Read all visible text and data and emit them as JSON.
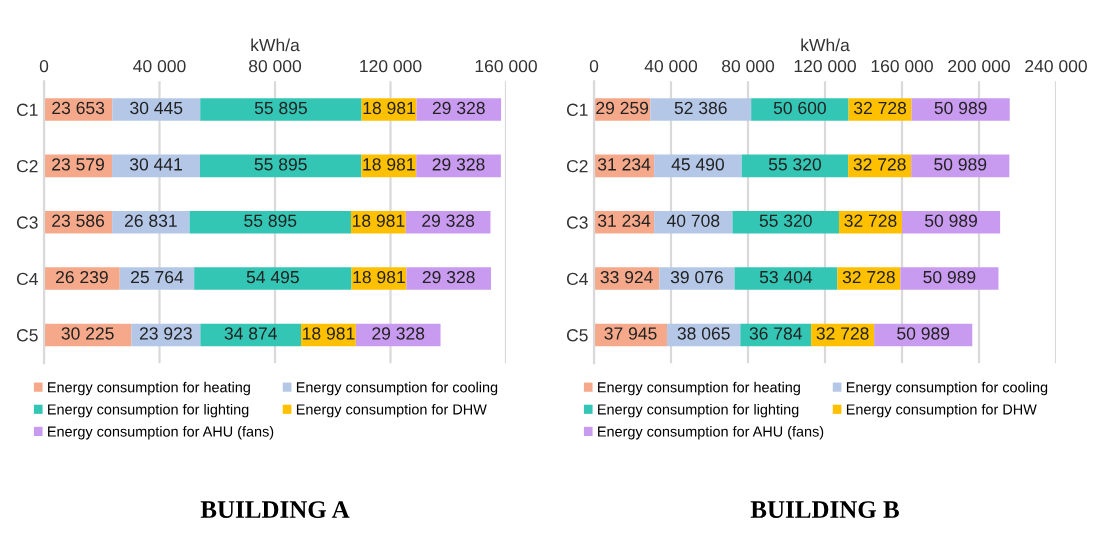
{
  "chart_data": [
    {
      "type": "bar",
      "orientation": "horizontal",
      "stacked": true,
      "title": "BUILDING A",
      "xlabel": "kWh/a",
      "categories": [
        "C1",
        "C2",
        "C3",
        "C4",
        "C5"
      ],
      "xlim": [
        0,
        160000
      ],
      "xticks": [
        0,
        {
          "value": 40000,
          "label": "40 000"
        },
        {
          "value": 80000,
          "label": "80 000"
        },
        {
          "value": 120000,
          "label": "120 000"
        },
        {
          "value": 160000,
          "label": "160 000"
        }
      ],
      "grid": "x",
      "legend": "bottom",
      "series": [
        {
          "name": "Energy consumption for heating",
          "color": "#f5a98a",
          "values": [
            23653,
            23579,
            23586,
            26239,
            30225
          ],
          "value_labels": [
            "23 653",
            "23 579",
            "23 586",
            "26 239",
            "30 225"
          ]
        },
        {
          "name": "Energy consumption for cooling",
          "color": "#b4c7e7",
          "values": [
            30445,
            30441,
            26831,
            25764,
            23923
          ],
          "value_labels": [
            "30 445",
            "30 441",
            "26 831",
            "25 764",
            "23 923"
          ]
        },
        {
          "name": "Energy consumption for lighting",
          "color": "#33c6b5",
          "values": [
            55895,
            55895,
            55895,
            54495,
            34874
          ],
          "value_labels": [
            "55 895",
            "55 895",
            "55 895",
            "54 495",
            "34 874"
          ]
        },
        {
          "name": "Energy consumption for DHW",
          "color": "#ffc000",
          "values": [
            18981,
            18981,
            18981,
            18981,
            18981
          ],
          "value_labels": [
            "18 981",
            "18 981",
            "18 981",
            "18 981",
            "18 981"
          ]
        },
        {
          "name": "Energy consumption for AHU (fans)",
          "color": "#c99bf0",
          "values": [
            29328,
            29328,
            29328,
            29328,
            29328
          ],
          "value_labels": [
            "29 328",
            "29 328",
            "29 328",
            "29 328",
            "29 328"
          ]
        }
      ]
    },
    {
      "type": "bar",
      "orientation": "horizontal",
      "stacked": true,
      "title": "BUILDING B",
      "xlabel": "kWh/a",
      "categories": [
        "C1",
        "C2",
        "C3",
        "C4",
        "C5"
      ],
      "xlim": [
        0,
        240000
      ],
      "xticks": [
        0,
        {
          "value": 40000,
          "label": "40 000"
        },
        {
          "value": 80000,
          "label": "80 000"
        },
        {
          "value": 120000,
          "label": "120 000"
        },
        {
          "value": 160000,
          "label": "160 000"
        },
        {
          "value": 200000,
          "label": "200 000"
        },
        {
          "value": 240000,
          "label": "240 000"
        }
      ],
      "grid": "x",
      "legend": "bottom",
      "series": [
        {
          "name": "Energy consumption for heating",
          "color": "#f5a98a",
          "values": [
            29259,
            31234,
            31234,
            33924,
            37945
          ],
          "value_labels": [
            "29 259",
            "31 234",
            "31 234",
            "33 924",
            "37 945"
          ]
        },
        {
          "name": "Energy consumption for cooling",
          "color": "#b4c7e7",
          "values": [
            52386,
            45490,
            40708,
            39076,
            38065
          ],
          "value_labels": [
            "52 386",
            "45 490",
            "40 708",
            "39 076",
            "38 065"
          ]
        },
        {
          "name": "Energy consumption for lighting",
          "color": "#33c6b5",
          "values": [
            50600,
            55320,
            55320,
            53404,
            36784
          ],
          "value_labels": [
            "50 600",
            "55 320",
            "55 320",
            "53 404",
            "36 784"
          ]
        },
        {
          "name": "Energy consumption for DHW",
          "color": "#ffc000",
          "values": [
            32728,
            32728,
            32728,
            32728,
            32728
          ],
          "value_labels": [
            "32 728",
            "32 728",
            "32 728",
            "32 728",
            "32 728"
          ]
        },
        {
          "name": "Energy consumption for AHU (fans)",
          "color": "#c99bf0",
          "values": [
            50989,
            50989,
            50989,
            50989,
            50989
          ],
          "value_labels": [
            "50 989",
            "50 989",
            "50 989",
            "50 989",
            "50 989"
          ]
        }
      ]
    }
  ]
}
